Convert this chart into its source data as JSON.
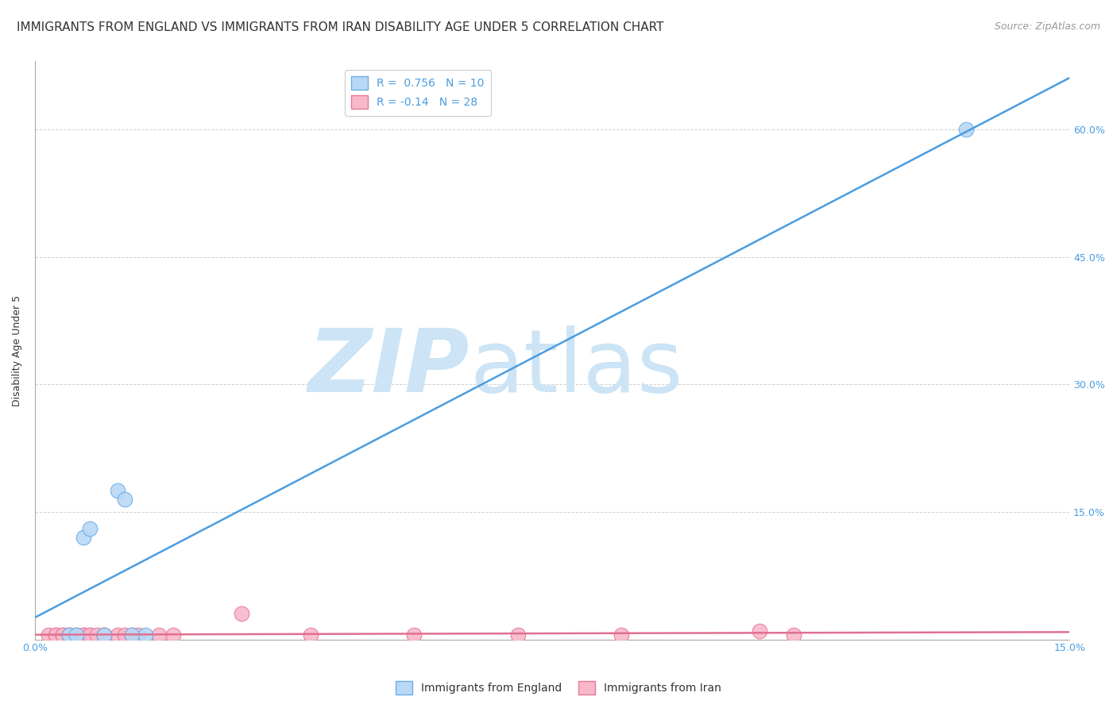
{
  "title": "IMMIGRANTS FROM ENGLAND VS IMMIGRANTS FROM IRAN DISABILITY AGE UNDER 5 CORRELATION CHART",
  "source": "Source: ZipAtlas.com",
  "ylabel": "Disability Age Under 5",
  "x_min": 0.0,
  "x_max": 0.15,
  "y_min": 0.0,
  "y_max": 0.68,
  "y_ticks": [
    0.0,
    0.15,
    0.3,
    0.45,
    0.6
  ],
  "y_tick_labels_right": [
    "",
    "15.0%",
    "30.0%",
    "45.0%",
    "60.0%"
  ],
  "x_ticks": [
    0.0,
    0.05,
    0.1,
    0.15
  ],
  "x_tick_labels": [
    "0.0%",
    "",
    "",
    "15.0%"
  ],
  "england_R": 0.756,
  "england_N": 10,
  "iran_R": -0.14,
  "iran_N": 28,
  "england_color": "#b8d8f5",
  "england_edge_color": "#6aaee8",
  "england_line_color": "#4a9de0",
  "iran_color": "#f8b8cc",
  "iran_edge_color": "#e87898",
  "iran_line_color": "#e07090",
  "england_x": [
    0.005,
    0.006,
    0.007,
    0.008,
    0.01,
    0.012,
    0.013,
    0.014,
    0.016,
    0.135
  ],
  "england_y": [
    0.005,
    0.005,
    0.12,
    0.13,
    0.005,
    0.175,
    0.165,
    0.005,
    0.005,
    0.6
  ],
  "iran_x": [
    0.002,
    0.003,
    0.003,
    0.004,
    0.004,
    0.005,
    0.005,
    0.006,
    0.007,
    0.007,
    0.008,
    0.008,
    0.009,
    0.01,
    0.01,
    0.012,
    0.013,
    0.014,
    0.015,
    0.018,
    0.02,
    0.03,
    0.04,
    0.055,
    0.07,
    0.085,
    0.105,
    0.11
  ],
  "iran_y": [
    0.005,
    0.005,
    0.005,
    0.005,
    0.005,
    0.005,
    0.005,
    0.005,
    0.005,
    0.005,
    0.005,
    0.005,
    0.005,
    0.005,
    0.005,
    0.005,
    0.005,
    0.005,
    0.005,
    0.005,
    0.005,
    0.03,
    0.005,
    0.005,
    0.005,
    0.005,
    0.01,
    0.005
  ],
  "legend_england": "Immigrants from England",
  "legend_iran": "Immigrants from Iran",
  "background_color": "#ffffff",
  "grid_color": "#cccccc",
  "watermark_zip": "ZIP",
  "watermark_atlas": "atlas",
  "watermark_color": "#cce4f5",
  "title_fontsize": 11,
  "source_fontsize": 9,
  "label_fontsize": 9,
  "tick_fontsize": 9,
  "legend_fontsize": 10,
  "axis_color": "#aaaaaa",
  "tick_label_color": "#4a9de0"
}
